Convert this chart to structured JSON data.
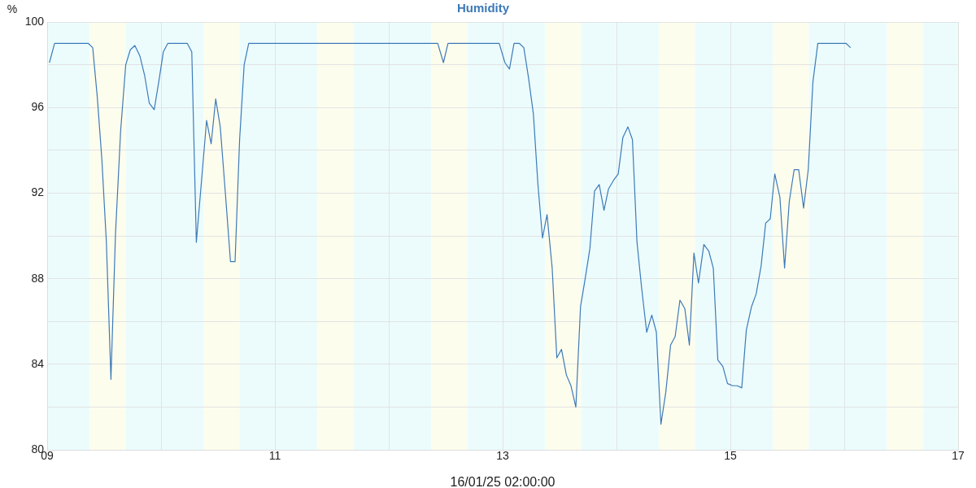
{
  "chart_data": {
    "type": "line",
    "title": "Humidity",
    "ylabel": "%",
    "xlabel": "16/01/25 02:00:00",
    "xlim": [
      9,
      17
    ],
    "ylim": [
      80,
      100
    ],
    "xticks": [
      {
        "value": 9,
        "label": "09"
      },
      {
        "value": 10,
        "label": null
      },
      {
        "value": 11,
        "label": "11"
      },
      {
        "value": 12,
        "label": null
      },
      {
        "value": 13,
        "label": "13"
      },
      {
        "value": 14,
        "label": null
      },
      {
        "value": 15,
        "label": "15"
      },
      {
        "value": 16,
        "label": null
      },
      {
        "value": 17,
        "label": "17"
      }
    ],
    "yticks": [
      80,
      {
        "value": 82,
        "label": null
      },
      84,
      {
        "value": 86,
        "label": null
      },
      88,
      {
        "value": 90,
        "label": null
      },
      92,
      {
        "value": 94,
        "label": null
      },
      96,
      {
        "value": 98,
        "label": null
      },
      100
    ],
    "grid": true,
    "legend": false,
    "marker": "none",
    "line_style": "solid",
    "bands": [
      {
        "axis": "x",
        "from": 9,
        "to": 9.375,
        "color": "#ecfcfd"
      },
      {
        "axis": "x",
        "from": 9.375,
        "to": 9.69,
        "color": "#fdfdee"
      },
      {
        "axis": "x",
        "from": 9.69,
        "to": 10.375,
        "color": "#ecfcfd"
      },
      {
        "axis": "x",
        "from": 10.375,
        "to": 10.69,
        "color": "#fdfdee"
      },
      {
        "axis": "x",
        "from": 10.69,
        "to": 11.375,
        "color": "#ecfcfd"
      },
      {
        "axis": "x",
        "from": 11.375,
        "to": 11.69,
        "color": "#fdfdee"
      },
      {
        "axis": "x",
        "from": 11.69,
        "to": 12.375,
        "color": "#ecfcfd"
      },
      {
        "axis": "x",
        "from": 12.375,
        "to": 12.69,
        "color": "#fdfdee"
      },
      {
        "axis": "x",
        "from": 12.69,
        "to": 13.375,
        "color": "#ecfcfd"
      },
      {
        "axis": "x",
        "from": 13.375,
        "to": 13.69,
        "color": "#fdfdee"
      },
      {
        "axis": "x",
        "from": 13.69,
        "to": 14.375,
        "color": "#ecfcfd"
      },
      {
        "axis": "x",
        "from": 14.375,
        "to": 14.69,
        "color": "#fdfdee"
      },
      {
        "axis": "x",
        "from": 14.69,
        "to": 15.375,
        "color": "#ecfcfd"
      },
      {
        "axis": "x",
        "from": 15.375,
        "to": 15.69,
        "color": "#fdfdee"
      },
      {
        "axis": "x",
        "from": 15.69,
        "to": 16.375,
        "color": "#ecfcfd"
      },
      {
        "axis": "x",
        "from": 16.375,
        "to": 16.69,
        "color": "#fdfdee"
      },
      {
        "axis": "x",
        "from": 16.69,
        "to": 17,
        "color": "#ecfcfd"
      }
    ],
    "series": [
      {
        "color": "#3d7ab8",
        "x": [
          9.02,
          9.065,
          9.36,
          9.4,
          9.44,
          9.48,
          9.52,
          9.56,
          9.6,
          9.645,
          9.69,
          9.73,
          9.77,
          9.815,
          9.856,
          9.897,
          9.94,
          9.98,
          10.02,
          10.06,
          10.23,
          10.27,
          10.31,
          10.4,
          10.44,
          10.48,
          10.52,
          10.565,
          10.61,
          10.65,
          10.69,
          10.73,
          10.77,
          12.43,
          12.48,
          12.52,
          12.97,
          13.02,
          13.06,
          13.1,
          13.145,
          13.186,
          13.227,
          13.27,
          13.31,
          13.35,
          13.39,
          13.435,
          13.476,
          13.517,
          13.56,
          13.6,
          13.643,
          13.684,
          13.725,
          13.766,
          13.807,
          13.848,
          13.89,
          13.93,
          13.974,
          14.015,
          14.056,
          14.1,
          14.14,
          14.18,
          14.22,
          14.265,
          14.31,
          14.35,
          14.39,
          14.433,
          14.475,
          14.515,
          14.557,
          14.6,
          14.64,
          14.68,
          14.72,
          14.767,
          14.81,
          14.85,
          14.89,
          14.934,
          14.975,
          15.02,
          15.06,
          15.1,
          15.14,
          15.186,
          15.227,
          15.27,
          15.31,
          15.35,
          15.39,
          15.435,
          15.476,
          15.517,
          15.56,
          15.6,
          15.643,
          15.684,
          15.725,
          15.768,
          16.015,
          16.056
        ],
        "values": [
          98.1,
          99,
          99,
          98.8,
          96.5,
          93.6,
          89.7,
          83.3,
          90.1,
          94.9,
          98,
          98.7,
          98.9,
          98.4,
          97.5,
          96.2,
          95.9,
          97.2,
          98.6,
          99,
          99,
          98.6,
          89.7,
          95.4,
          94.3,
          96.4,
          95.1,
          92,
          88.8,
          88.8,
          94.5,
          98,
          99,
          99,
          98.1,
          99,
          99,
          98.1,
          97.8,
          99,
          99,
          98.8,
          97.4,
          95.7,
          92.4,
          89.9,
          91,
          88.5,
          84.3,
          84.7,
          83.5,
          83,
          82,
          86.7,
          88,
          89.4,
          92.1,
          92.4,
          91.2,
          92.2,
          92.6,
          92.9,
          94.6,
          95.1,
          94.5,
          89.7,
          87.6,
          85.5,
          86.3,
          85.5,
          81.2,
          82.7,
          84.9,
          85.3,
          87,
          86.6,
          84.9,
          89.2,
          87.8,
          89.6,
          89.3,
          88.5,
          84.2,
          83.9,
          83.1,
          83,
          83,
          82.9,
          85.6,
          86.7,
          87.3,
          88.6,
          90.6,
          90.8,
          92.9,
          91.8,
          88.5,
          91.6,
          93.1,
          93.1,
          91.3,
          93.1,
          97.2,
          99,
          99,
          98.8
        ]
      }
    ]
  }
}
